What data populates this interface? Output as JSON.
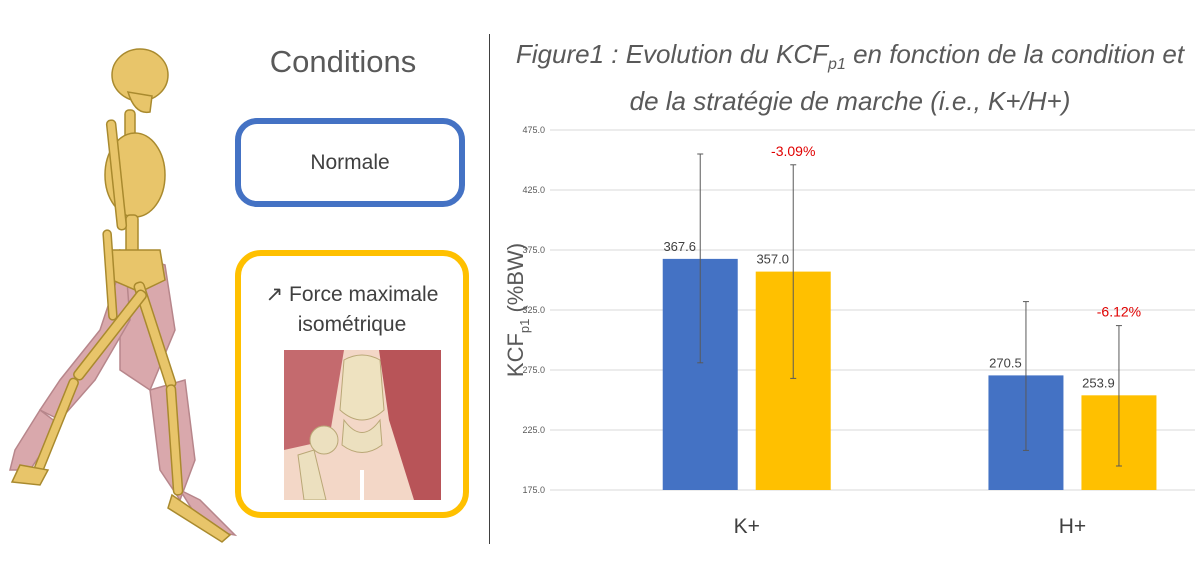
{
  "conditions": {
    "title": "Conditions",
    "normal_label": "Normale",
    "force_arrow": "↗",
    "force_label_line1": "Force maximale",
    "force_label_line2": "isométrique"
  },
  "figure": {
    "title_prefix": "Figure1 : Evolution du KCF",
    "title_sub": "p1",
    "title_suffix": " en fonction de la condition et de la stratégie de marche (i.e., K+/H+)"
  },
  "chart_data": {
    "type": "bar",
    "categories": [
      "K+",
      "H+"
    ],
    "series": [
      {
        "color": "#4472C4",
        "values": [
          367.6,
          270.5
        ],
        "error_low": [
          281,
          208
        ],
        "error_high": [
          455,
          332
        ]
      },
      {
        "color": "#FFC000",
        "values": [
          357.0,
          253.9
        ],
        "error_low": [
          268,
          195
        ],
        "error_high": [
          446,
          312
        ]
      }
    ],
    "data_labels": [
      [
        "367.6",
        "270.5"
      ],
      [
        "357.0",
        "253.9"
      ]
    ],
    "annotations": [
      "-3.09%",
      "-6.12%"
    ],
    "annotation_color": "#E00000",
    "ylabel_main": "KCF",
    "ylabel_sub": "p1",
    "ylabel_unit": " (%BW)",
    "yticks": [
      "175.0",
      "225.0",
      "275.0",
      "325.0",
      "375.0",
      "425.0",
      "475.0"
    ],
    "ylim": [
      175,
      475
    ],
    "grid": true
  }
}
